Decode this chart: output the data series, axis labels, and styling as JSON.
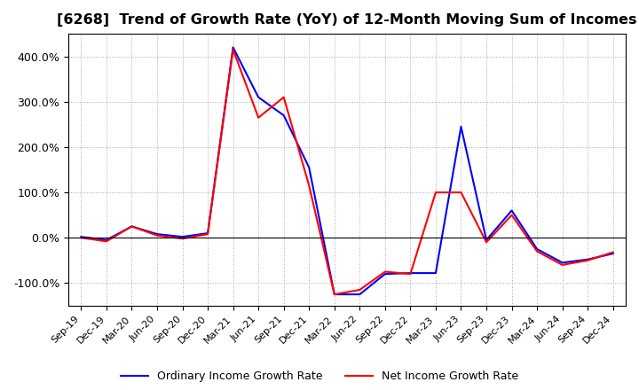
{
  "title": "[6268]  Trend of Growth Rate (YoY) of 12-Month Moving Sum of Incomes",
  "title_fontsize": 11.5,
  "background_color": "#ffffff",
  "grid_color": "#aaaaaa",
  "ylim": [
    -150,
    450
  ],
  "yticks": [
    -100,
    0,
    100,
    200,
    300,
    400
  ],
  "legend_labels": [
    "Ordinary Income Growth Rate",
    "Net Income Growth Rate"
  ],
  "line_colors": [
    "blue",
    "red"
  ],
  "x_labels": [
    "Sep-19",
    "Dec-19",
    "Mar-20",
    "Jun-20",
    "Sep-20",
    "Dec-20",
    "Mar-21",
    "Jun-21",
    "Sep-21",
    "Dec-21",
    "Mar-22",
    "Jun-22",
    "Sep-22",
    "Dec-22",
    "Mar-23",
    "Jun-23",
    "Sep-23",
    "Dec-23",
    "Mar-24",
    "Jun-24",
    "Sep-24",
    "Dec-24"
  ],
  "ordinary_income": [
    2,
    -5,
    25,
    8,
    2,
    10,
    420,
    310,
    270,
    155,
    -125,
    -125,
    -80,
    -78,
    -78,
    245,
    -5,
    60,
    -25,
    -55,
    -48,
    -35
  ],
  "net_income": [
    0,
    -8,
    25,
    5,
    -2,
    8,
    415,
    265,
    310,
    115,
    -125,
    -115,
    -75,
    -80,
    100,
    100,
    -10,
    50,
    -30,
    -60,
    -50,
    -32
  ]
}
